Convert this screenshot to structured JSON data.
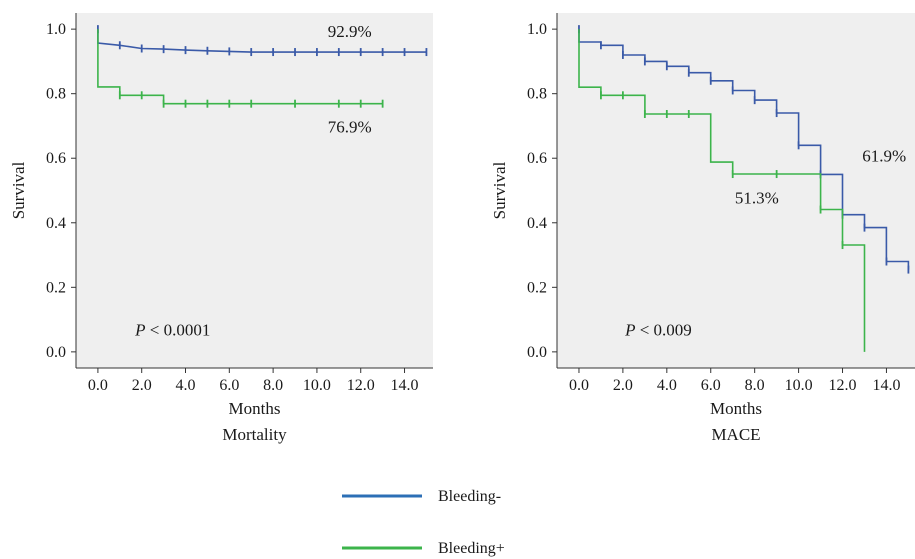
{
  "chart_data": [
    {
      "type": "line",
      "step": true,
      "title": "Mortality",
      "xlabel": "Months",
      "ylabel": "Survival",
      "xlim": [
        -1,
        15.3
      ],
      "ylim": [
        -0.05,
        1.05
      ],
      "xticks": [
        0,
        2,
        4,
        6,
        8,
        10,
        12,
        14
      ],
      "xtick_labels": [
        "0.0",
        "2.0",
        "4.0",
        "6.0",
        "8.0",
        "10.0",
        "12.0",
        "14.0"
      ],
      "yticks": [
        0,
        0.2,
        0.4,
        0.6,
        0.8,
        1.0
      ],
      "ytick_labels": [
        "0.0",
        "0.2",
        "0.4",
        "0.6",
        "0.8",
        "1.0"
      ],
      "grid": false,
      "background": "#efefef",
      "series": [
        {
          "name": "Bleeding-",
          "color": "#3a5aa8",
          "points": [
            [
              0,
              1.0
            ],
            [
              0,
              0.957
            ],
            [
              1,
              0.95
            ],
            [
              2,
              0.94
            ],
            [
              3,
              0.938
            ],
            [
              4,
              0.935
            ],
            [
              5,
              0.933
            ],
            [
              6,
              0.931
            ],
            [
              7,
              0.929
            ],
            [
              8,
              0.929
            ],
            [
              9,
              0.929
            ],
            [
              10,
              0.929
            ],
            [
              11,
              0.929
            ],
            [
              12,
              0.929
            ],
            [
              13,
              0.929
            ],
            [
              14,
              0.929
            ],
            [
              15,
              0.929
            ]
          ],
          "censor": [
            [
              0,
              1.0
            ],
            [
              1,
              0.95
            ],
            [
              2,
              0.94
            ],
            [
              3,
              0.938
            ],
            [
              4,
              0.935
            ],
            [
              5,
              0.933
            ],
            [
              6,
              0.931
            ],
            [
              7,
              0.929
            ],
            [
              8,
              0.929
            ],
            [
              9,
              0.929
            ],
            [
              10,
              0.929
            ],
            [
              11,
              0.929
            ],
            [
              12,
              0.929
            ],
            [
              13,
              0.929
            ],
            [
              14,
              0.929
            ],
            [
              15,
              0.929
            ]
          ]
        },
        {
          "name": "Bleeding+",
          "color": "#3cb44b",
          "points": [
            [
              0,
              1.0
            ],
            [
              0,
              0.821
            ],
            [
              1,
              0.821
            ],
            [
              1,
              0.795
            ],
            [
              3,
              0.795
            ],
            [
              3,
              0.769
            ],
            [
              13,
              0.769
            ]
          ],
          "censor": [
            [
              1,
              0.795
            ],
            [
              2,
              0.795
            ],
            [
              3,
              0.769
            ],
            [
              4,
              0.769
            ],
            [
              5,
              0.769
            ],
            [
              6,
              0.769
            ],
            [
              7,
              0.769
            ],
            [
              9,
              0.769
            ],
            [
              11,
              0.769
            ],
            [
              12,
              0.769
            ],
            [
              13,
              0.769
            ]
          ]
        }
      ],
      "annotations": [
        {
          "text": "92.9%",
          "x": 11.5,
          "y": 0.975
        },
        {
          "text": "76.9%",
          "x": 11.5,
          "y": 0.68
        }
      ],
      "p_value": {
        "italic": "P",
        "text": " < 0.0001",
        "x": 1.7,
        "y": 0.05
      }
    },
    {
      "type": "line",
      "step": true,
      "title": "MACE",
      "xlabel": "Months",
      "ylabel": "Survival",
      "xlim": [
        -1,
        15.3
      ],
      "ylim": [
        -0.05,
        1.05
      ],
      "xticks": [
        0,
        2,
        4,
        6,
        8,
        10,
        12,
        14
      ],
      "xtick_labels": [
        "0.0",
        "2.0",
        "4.0",
        "6.0",
        "8.0",
        "10.0",
        "12.0",
        "14.0"
      ],
      "yticks": [
        0,
        0.2,
        0.4,
        0.6,
        0.8,
        1.0
      ],
      "ytick_labels": [
        "0.0",
        "0.2",
        "0.4",
        "0.6",
        "0.8",
        "1.0"
      ],
      "grid": false,
      "background": "#efefef",
      "series": [
        {
          "name": "Bleeding-",
          "color": "#3a5aa8",
          "points": [
            [
              0,
              1.0
            ],
            [
              0,
              0.96
            ],
            [
              1,
              0.96
            ],
            [
              1,
              0.95
            ],
            [
              2,
              0.95
            ],
            [
              2,
              0.92
            ],
            [
              3,
              0.92
            ],
            [
              3,
              0.9
            ],
            [
              4,
              0.9
            ],
            [
              4,
              0.885
            ],
            [
              5,
              0.885
            ],
            [
              5,
              0.865
            ],
            [
              6,
              0.865
            ],
            [
              6,
              0.84
            ],
            [
              7,
              0.84
            ],
            [
              7,
              0.81
            ],
            [
              8,
              0.81
            ],
            [
              8,
              0.78
            ],
            [
              9,
              0.78
            ],
            [
              9,
              0.74
            ],
            [
              10,
              0.74
            ],
            [
              10,
              0.64
            ],
            [
              11,
              0.64
            ],
            [
              11,
              0.55
            ],
            [
              12,
              0.55
            ],
            [
              12,
              0.425
            ],
            [
              13,
              0.425
            ],
            [
              13,
              0.385
            ],
            [
              14,
              0.385
            ],
            [
              14,
              0.28
            ],
            [
              15,
              0.28
            ],
            [
              15,
              0.255
            ]
          ],
          "censor": [
            [
              0,
              1.0
            ],
            [
              1,
              0.95
            ],
            [
              2,
              0.92
            ],
            [
              3,
              0.9
            ],
            [
              4,
              0.885
            ],
            [
              5,
              0.865
            ],
            [
              6,
              0.84
            ],
            [
              7,
              0.81
            ],
            [
              8,
              0.78
            ],
            [
              9,
              0.74
            ],
            [
              10,
              0.64
            ],
            [
              11,
              0.55
            ],
            [
              12,
              0.425
            ],
            [
              13,
              0.385
            ],
            [
              14,
              0.28
            ],
            [
              15,
              0.255
            ]
          ]
        },
        {
          "name": "Bleeding+",
          "color": "#3cb44b",
          "points": [
            [
              0,
              1.0
            ],
            [
              0,
              0.82
            ],
            [
              1,
              0.82
            ],
            [
              1,
              0.795
            ],
            [
              3,
              0.795
            ],
            [
              3,
              0.737
            ],
            [
              6,
              0.737
            ],
            [
              6,
              0.588
            ],
            [
              7,
              0.588
            ],
            [
              7,
              0.551
            ],
            [
              11,
              0.551
            ],
            [
              11,
              0.441
            ],
            [
              12,
              0.441
            ],
            [
              12,
              0.331
            ],
            [
              13,
              0.331
            ],
            [
              13,
              0.0
            ]
          ],
          "censor": [
            [
              1,
              0.795
            ],
            [
              2,
              0.795
            ],
            [
              3,
              0.737
            ],
            [
              4,
              0.737
            ],
            [
              5,
              0.737
            ],
            [
              7,
              0.551
            ],
            [
              9,
              0.551
            ],
            [
              11,
              0.441
            ],
            [
              12,
              0.331
            ]
          ]
        }
      ],
      "annotations": [
        {
          "text": "61.9%",
          "x": 13.9,
          "y": 0.59
        },
        {
          "text": "51.3%",
          "x": 8.1,
          "y": 0.46
        }
      ],
      "p_value": {
        "italic": "P",
        "text": " < 0.009",
        "x": 2.1,
        "y": 0.05
      }
    }
  ],
  "legend": {
    "placement": "bottom-center",
    "items": [
      {
        "label": "Bleeding-",
        "color": "#2c6fb6"
      },
      {
        "label": "Bleeding+",
        "color": "#3cb44b"
      }
    ]
  }
}
